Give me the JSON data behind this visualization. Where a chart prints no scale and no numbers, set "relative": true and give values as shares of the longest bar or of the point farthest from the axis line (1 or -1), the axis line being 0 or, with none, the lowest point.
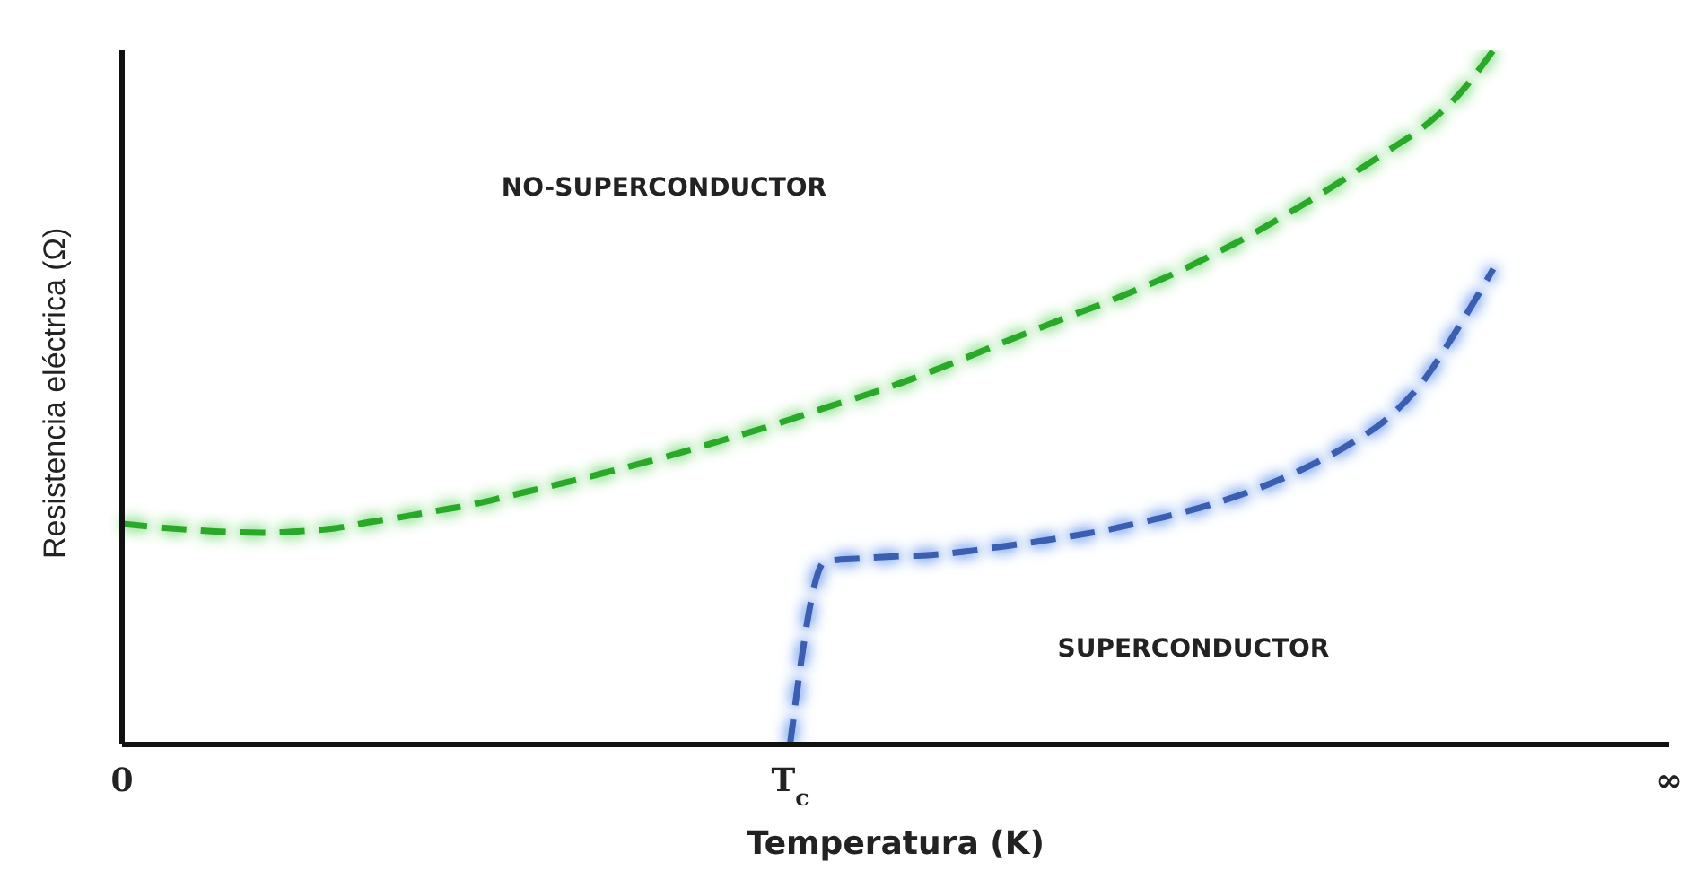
{
  "chart_data": {
    "type": "line",
    "relative": true,
    "xlabel": "Temperatura (K)",
    "ylabel": "Resistencia eléctrica (Ω)",
    "categories": [
      "0",
      null,
      null,
      null,
      null,
      null,
      null,
      null,
      null,
      null,
      null,
      null,
      null,
      null,
      null,
      null,
      null,
      null,
      null,
      "T$_{c}$",
      null,
      null,
      null,
      null,
      null,
      null,
      null,
      null,
      null,
      null,
      null,
      null,
      null,
      null,
      null,
      null,
      null,
      null,
      null,
      null,
      null,
      null,
      null,
      null,
      "∞"
    ],
    "annotations": [
      "NO-SUPERCONDUCTOR",
      "SUPERCONDUCTOR"
    ],
    "line_style": "dashed",
    "marker": "none",
    "legend": false,
    "grid": false,
    "series": [
      {
        "color": "#2aa82a",
        "values": [
          0.318,
          0.313,
          0.309,
          0.306,
          0.305,
          0.307,
          0.311,
          0.32,
          0.328,
          0.337,
          0.346,
          0.358,
          0.37,
          0.382,
          0.395,
          0.408,
          0.422,
          0.437,
          0.452,
          0.468,
          0.485,
          0.501,
          0.518,
          0.537,
          0.557,
          0.578,
          0.598,
          0.618,
          0.637,
          0.658,
          0.68,
          0.705,
          0.731,
          0.76,
          0.79,
          0.822,
          0.855,
          0.889,
          0.935,
          1,
          null,
          null,
          null,
          null,
          null
        ]
      },
      {
        "color": "#3a5fb0",
        "values": [
          null,
          null,
          null,
          null,
          null,
          null,
          null,
          null,
          null,
          null,
          null,
          null,
          null,
          null,
          null,
          null,
          null,
          null,
          null,
          0,
          0.264,
          0.268,
          0.271,
          0.273,
          0.278,
          0.285,
          0.292,
          0.3,
          0.309,
          0.32,
          0.332,
          0.346,
          0.363,
          0.383,
          0.407,
          0.435,
          0.47,
          0.523,
          0.6,
          0.685,
          null,
          null,
          null,
          null,
          null
        ]
      }
    ]
  }
}
